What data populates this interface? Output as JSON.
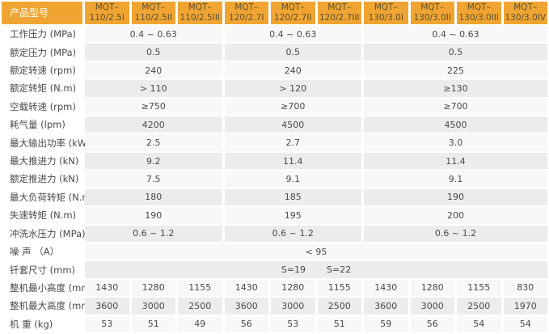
{
  "colors": {
    "header_bg": "#F0A532",
    "header_text": "#5B5130",
    "header_label_text": "#FFFFFF",
    "body_text": "#4A4A4A",
    "row_light": "#F8F8F8",
    "row_dark": "#ECECEC",
    "label_light": "#FCFCFC",
    "label_dark": "#F3F3F3",
    "gutter": "#FFFFFF"
  },
  "table": {
    "corner_label": "产品型号",
    "models": [
      "MQT–\n110/2.5I",
      "MQT–\n110/2.5II",
      "MQT–\n110/2.5III",
      "MQT–\n120/2.7I",
      "MQT–\n120/2.7II",
      "MQT–\n120/2.7III",
      "MQT–\n130/3.0I",
      "MQT–\n130/3.0II",
      "MQT–\n130/3.0III",
      "MQT–\n130/3.0IV"
    ],
    "group_spans": [
      3,
      3,
      4
    ],
    "rows": [
      {
        "label": "工作压力 (MPa)",
        "type": "grouped",
        "values": [
          "0.4 ~ 0.63",
          "0.4 ~ 0.63",
          "0.4 ~ 0.63"
        ]
      },
      {
        "label": "额定压力 (MPa)",
        "type": "grouped",
        "values": [
          "0.5",
          "0.5",
          "0.5"
        ]
      },
      {
        "label": "额定转速 (rpm)",
        "type": "grouped",
        "values": [
          "240",
          "240",
          "225"
        ]
      },
      {
        "label": "额定转矩 (N.m)",
        "type": "grouped",
        "values": [
          "> 110",
          "> 120",
          "≥130"
        ]
      },
      {
        "label": "空载转速 (rpm)",
        "type": "grouped",
        "values": [
          "≥750",
          "≥700",
          "≥700"
        ]
      },
      {
        "label": "耗气量 (lpm)",
        "type": "grouped",
        "values": [
          "4200",
          "4500",
          "4500"
        ]
      },
      {
        "label": "最大输出功率 (kW)",
        "type": "grouped",
        "values": [
          "2.5",
          "2.7",
          "3.0"
        ]
      },
      {
        "label": "最大推进力 (kN)",
        "type": "grouped",
        "values": [
          "9.2",
          "11.4",
          "11.4"
        ]
      },
      {
        "label": "额定推进力 (kN)",
        "type": "grouped",
        "values": [
          "7.5",
          "9.1",
          "9.1"
        ]
      },
      {
        "label": "最大负荷转矩 (N.m)",
        "type": "grouped",
        "values": [
          "180",
          "185",
          "190"
        ]
      },
      {
        "label": "失速转矩 (N.m)",
        "type": "grouped",
        "values": [
          "190",
          "195",
          "200"
        ]
      },
      {
        "label": "冲洗水压力 (MPa)",
        "type": "grouped",
        "values": [
          "0.6 ~ 1.2",
          "0.6 ~ 1.2",
          "0.6 ~ 1.2"
        ]
      },
      {
        "label": "噪 声 （A）",
        "type": "full",
        "values": [
          "< 95"
        ]
      },
      {
        "label": "钎套尺寸 (mm)",
        "type": "full",
        "values": [
          "S=19",
          "S=22"
        ]
      },
      {
        "label": "整机最小高度 (mm)",
        "type": "each",
        "values": [
          "1430",
          "1280",
          "1155",
          "1430",
          "1280",
          "1155",
          "1430",
          "1280",
          "1155",
          "830"
        ]
      },
      {
        "label": "整机最大高度 (mm)",
        "type": "each",
        "values": [
          "3600",
          "3000",
          "2500",
          "3600",
          "3000",
          "2500",
          "3600",
          "3000",
          "2500",
          "1970"
        ]
      },
      {
        "label": "机 重 (kg)",
        "type": "each",
        "values": [
          "53",
          "51",
          "49",
          "56",
          "53",
          "51",
          "59",
          "56",
          "54",
          "54"
        ]
      }
    ]
  }
}
